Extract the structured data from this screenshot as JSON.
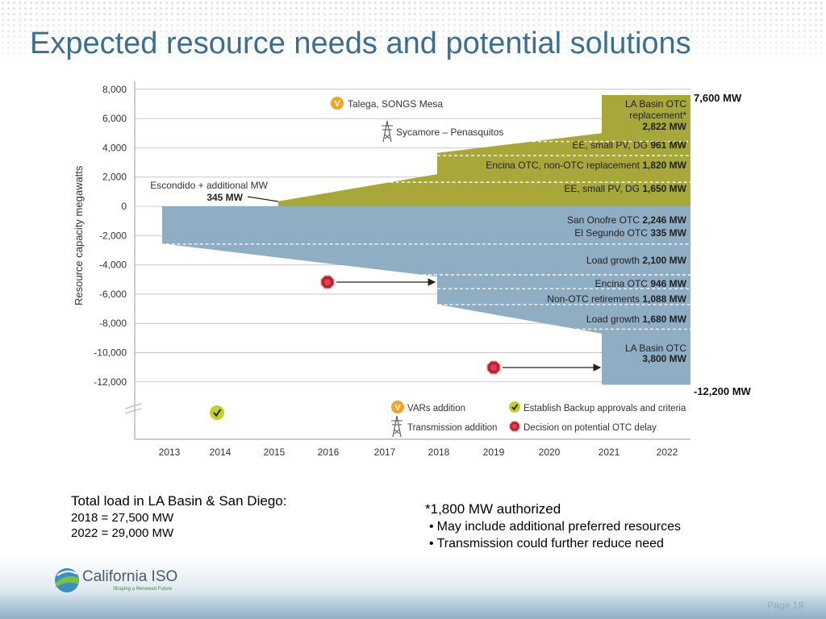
{
  "title": "Expected resource needs and potential solutions",
  "colors": {
    "title": "#3c6e8f",
    "green_band": "#a7a73a",
    "blue_band": "#8fadc3",
    "stop_red": "#b5242c",
    "check_green": "#c3cf2a",
    "vars_orange": "#f0a428"
  },
  "chart_data": {
    "type": "area",
    "ylabel": "Resource capacity megawatts",
    "ylim": [
      -13000,
      8000
    ],
    "yticks": [
      "8,000",
      "6,000",
      "4,000",
      "2,000",
      "0",
      "-2,000",
      "-4,000",
      "-6,000",
      "-8,000",
      "-10,000",
      "-12,000"
    ],
    "ytick_values": [
      8000,
      6000,
      4000,
      2000,
      0,
      -2000,
      -4000,
      -6000,
      -8000,
      -10000,
      -12000
    ],
    "xticks": [
      "2013",
      "2014",
      "2015",
      "2016",
      "2017",
      "2018",
      "2019",
      "2020",
      "2021",
      "2022"
    ],
    "grid": true,
    "resources_band": {
      "name": "Potential solutions",
      "points": [
        {
          "x": 2015,
          "y": 0
        },
        {
          "x": 2015,
          "y": 345
        },
        {
          "x": 2018,
          "y": 2200
        },
        {
          "x": 2018,
          "y": 3650
        },
        {
          "x": 2021,
          "y": 5000
        },
        {
          "x": 2021,
          "y": 7600
        },
        {
          "x": 2022,
          "y": 7600
        },
        {
          "x": 2022,
          "y": 0
        }
      ],
      "dividers_y": [
        1650,
        3470,
        4431
      ]
    },
    "needs_band": {
      "name": "Resource needs",
      "points": [
        {
          "x": 2013,
          "y": 0
        },
        {
          "x": 2013,
          "y": -2550
        },
        {
          "x": 2018,
          "y": -4800
        },
        {
          "x": 2018,
          "y": -6700
        },
        {
          "x": 2021,
          "y": -8700
        },
        {
          "x": 2021,
          "y": -12200
        },
        {
          "x": 2022,
          "y": -12200
        },
        {
          "x": 2022,
          "y": 0
        }
      ],
      "dividers_y": [
        -2581,
        -4681,
        -5627,
        -6715,
        -8395
      ]
    },
    "annotations": {
      "total_top": "7,600 MW",
      "total_bottom": "-12,200 MW",
      "escondido_label": "Escondido + additional MW",
      "escondido_value": "345 MW",
      "talega": "Talega, SONGS Mesa",
      "sycamore": "Sycamore – Penasquitos"
    },
    "segments": [
      {
        "label": "LA Basin OTC replacement*",
        "value": "2,822 MW",
        "band": "resources"
      },
      {
        "label": "EE, small PV, DG",
        "value": "961 MW",
        "band": "resources"
      },
      {
        "label": "Encina OTC, non-OTC replacement",
        "value": "1,820 MW",
        "band": "resources"
      },
      {
        "label": "EE, small PV, DG",
        "value": "1,650 MW",
        "band": "resources"
      },
      {
        "label": "San Onofre OTC",
        "value": "2,246 MW",
        "band": "needs"
      },
      {
        "label": "El Segundo OTC",
        "value": "335 MW",
        "band": "needs"
      },
      {
        "label": "Load growth",
        "value": "2,100 MW",
        "band": "needs"
      },
      {
        "label": "Encina OTC",
        "value": "946 MW",
        "band": "needs"
      },
      {
        "label": "Non-OTC retirements",
        "value": "1,088 MW",
        "band": "needs"
      },
      {
        "label": "Load growth",
        "value": "1,680 MW",
        "band": "needs"
      },
      {
        "label": "LA Basin OTC",
        "value": "3,800 MW",
        "band": "needs"
      }
    ],
    "markers": [
      {
        "type": "decision",
        "x": 2016,
        "y": -5100,
        "arrow_to_x": 2018
      },
      {
        "type": "decision",
        "x": 2019,
        "y": -11000,
        "arrow_to_x": 2021
      },
      {
        "type": "backup",
        "x": 2014,
        "y": -13100
      }
    ],
    "legend": [
      {
        "icon": "vars",
        "label": "VARs addition"
      },
      {
        "icon": "backup",
        "label": "Establish Backup approvals and criteria"
      },
      {
        "icon": "transmission",
        "label": "Transmission addition"
      },
      {
        "icon": "decision",
        "label": "Decision on potential OTC delay"
      }
    ]
  },
  "notes_left": {
    "line1": "Total load in LA Basin & San Diego:",
    "line2": "2018 = 27,500 MW",
    "line3": "2022 = 29,000 MW"
  },
  "notes_right": {
    "line1": "*1,800 MW authorized",
    "bullets": [
      "May include additional preferred resources",
      "Transmission could further reduce need"
    ]
  },
  "logo": {
    "name": "California ISO",
    "tagline": "Shaping a Renewed Future"
  },
  "page_number": "Page 19"
}
